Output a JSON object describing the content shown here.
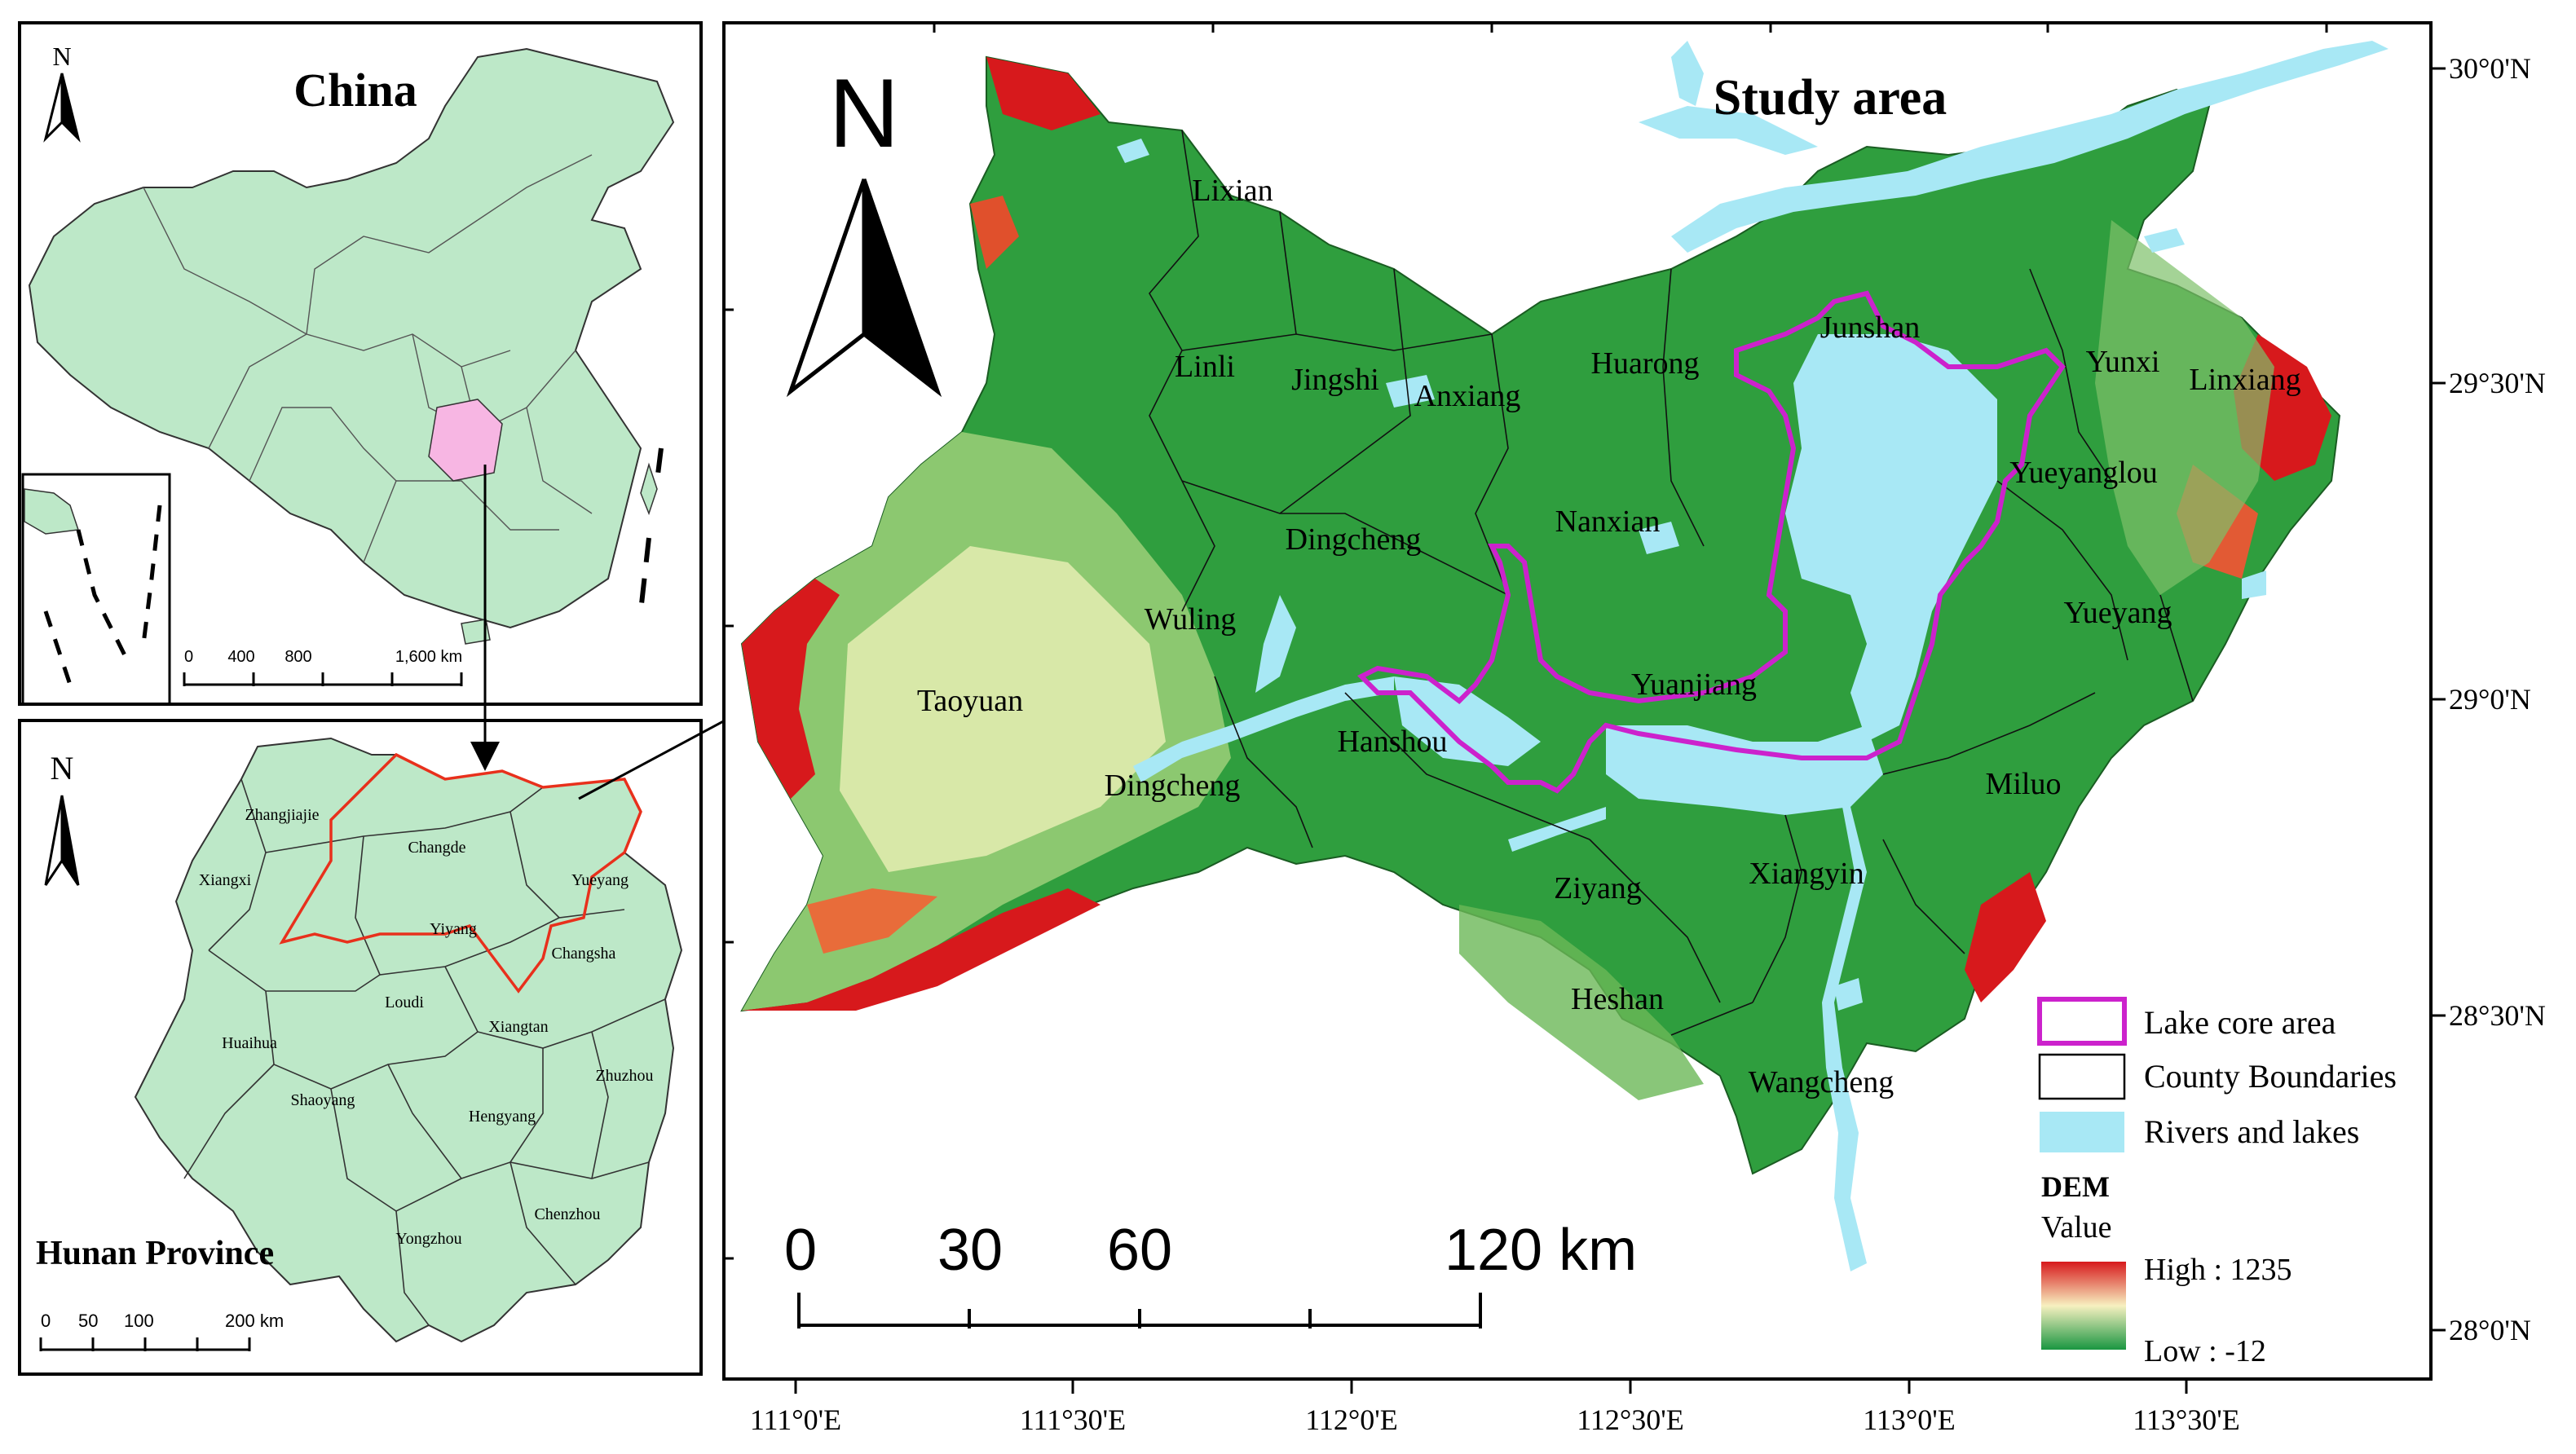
{
  "china_map": {
    "title": "China",
    "north_label": "N",
    "scale_labels": [
      "0",
      "400",
      "800",
      "1,600 km"
    ]
  },
  "hunan_map": {
    "title": "Hunan Province",
    "north_label": "N",
    "scale_labels": [
      "0",
      "50",
      "100",
      "200 km"
    ],
    "cities": [
      "Zhangjiajie",
      "Changde",
      "Xiangxi",
      "Yueyang",
      "Yiyang",
      "Changsha",
      "Loudi",
      "Xiangtan",
      "Huaihua",
      "Shaoyang",
      "Hengyang",
      "Zhuzhou",
      "Yongzhou",
      "Chenzhou"
    ]
  },
  "study_map": {
    "title": "Study area",
    "north_label": "N",
    "counties": [
      "Lixian",
      "Linli",
      "Jingshi",
      "Anxiang",
      "Huarong",
      "Junshan",
      "Yunxi",
      "Linxiang",
      "Yueyanglou",
      "Nanxian",
      "Dingcheng",
      "Wuling",
      "Yueyang",
      "Yuanjiang",
      "Taoyuan",
      "Hanshou",
      "Dingcheng",
      "Miluo",
      "Ziyang",
      "Xiangyin",
      "Heshan",
      "Wangcheng"
    ],
    "scale_labels": [
      "0",
      "30",
      "60",
      "120 km"
    ],
    "lat_labels": [
      "30°0'N",
      "29°30'N",
      "29°0'N",
      "28°30'N",
      "28°0'N"
    ],
    "lon_labels": [
      "111°0'E",
      "111°30'E",
      "112°0'E",
      "112°30'E",
      "113°0'E",
      "113°30'E"
    ]
  },
  "legend": {
    "items": [
      "Lake core area",
      "County Boundaries",
      "Rivers and lakes"
    ],
    "dem_title": "DEM",
    "dem_value_label": "Value",
    "high_label": "High : 1235",
    "low_label": "Low : -12"
  },
  "colors": {
    "china_fill": "#bde8c8",
    "hunan_fill": "#bde8c8",
    "study_highlight": "#f7b6e3",
    "boundary_red": "#e8301c",
    "lake_core": "#cc22cc",
    "water": "#a8e8f5",
    "dem_high": "#d7191c",
    "dem_mid": "#f7f0c0",
    "dem_low": "#1a9641"
  }
}
